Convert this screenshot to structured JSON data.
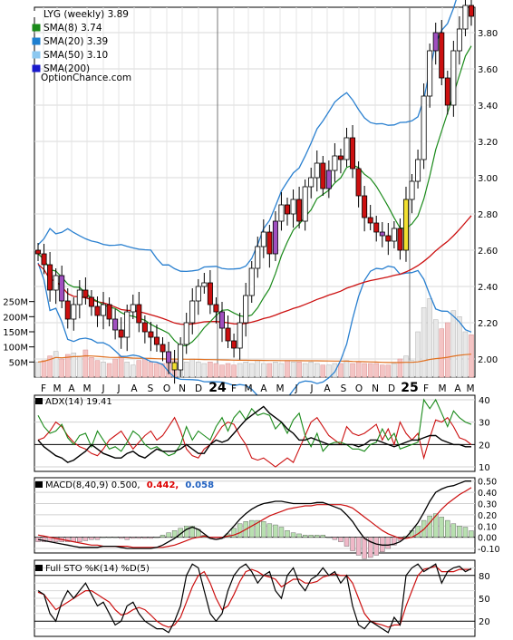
{
  "chart_data": {
    "type": "line",
    "title": "LYG (weekly) 3.89",
    "source": "OptionChance.com",
    "price_panel": {
      "legend": [
        {
          "label": "LYG (weekly) 3.89",
          "color": "#ffffff"
        },
        {
          "label": "SMA(8) 3.74",
          "color": "#1a8a1a"
        },
        {
          "label": "SMA(20) 3.39",
          "color": "#1e7fd0"
        },
        {
          "label": "SMA(50) 3.10",
          "color": "#8cc8f0"
        },
        {
          "label": "SMA(200)",
          "color": "#1a1acc"
        }
      ],
      "y_ticks": [
        "3.80",
        "3.60",
        "3.40",
        "3.20",
        "3.00",
        "2.80",
        "2.60",
        "2.40",
        "2.20",
        "2.00"
      ],
      "ylim": [
        1.9,
        3.94
      ],
      "close": [
        2.58,
        2.52,
        2.38,
        2.46,
        2.32,
        2.22,
        2.3,
        2.38,
        2.34,
        2.29,
        2.24,
        2.3,
        2.22,
        2.16,
        2.12,
        2.26,
        2.3,
        2.2,
        2.15,
        2.12,
        2.08,
        2.04,
        1.98,
        1.94,
        2.08,
        2.2,
        2.32,
        2.4,
        2.42,
        2.3,
        2.26,
        2.17,
        2.1,
        2.06,
        2.2,
        2.35,
        2.5,
        2.62,
        2.7,
        2.58,
        2.76,
        2.85,
        2.8,
        2.88,
        2.76,
        2.95,
        3.0,
        3.08,
        2.94,
        3.04,
        3.12,
        3.1,
        3.22,
        3.05,
        2.9,
        2.78,
        2.75,
        2.7,
        2.68,
        2.65,
        2.72,
        2.6,
        2.88,
        2.98,
        3.1,
        3.45,
        3.7,
        3.8,
        3.55,
        3.4,
        3.7,
        3.82,
        3.95,
        3.89
      ],
      "volume_ticks": [
        "250M",
        "200M",
        "150M",
        "100M",
        "50M"
      ],
      "volume_ylim": [
        0,
        270
      ],
      "volume": [
        50,
        55,
        70,
        85,
        60,
        75,
        80,
        70,
        90,
        65,
        55,
        50,
        45,
        60,
        70,
        50,
        40,
        55,
        60,
        50,
        45,
        45,
        50,
        55,
        55,
        50,
        60,
        50,
        45,
        50,
        45,
        40,
        45,
        40,
        45,
        50,
        45,
        55,
        45,
        45,
        50,
        45,
        55,
        50,
        50,
        45,
        50,
        45,
        40,
        40,
        45,
        45,
        55,
        45,
        50,
        45,
        45,
        45,
        40,
        40,
        45,
        60,
        70,
        55,
        150,
        230,
        260,
        190,
        160,
        180,
        220,
        200,
        150,
        140
      ]
    },
    "x_labels": [
      "F",
      "M",
      "A",
      "M",
      "J",
      "J",
      "A",
      "S",
      "O",
      "N",
      "D",
      "24",
      "F",
      "M",
      "A",
      "M",
      "J",
      "J",
      "A",
      "S",
      "O",
      "N",
      "D",
      "25",
      "F",
      "M",
      "A",
      "M"
    ],
    "adx_panel": {
      "title": "ADX(14) 19.41",
      "y_ticks": [
        "40",
        "30",
        "20",
        "10"
      ],
      "ylim": [
        8,
        42
      ],
      "adx": [
        22,
        19,
        17,
        15,
        14,
        12,
        13,
        15,
        17,
        20,
        18,
        16,
        15,
        14,
        14,
        16,
        17,
        15,
        14,
        16,
        18,
        17,
        17,
        17,
        18,
        20,
        18,
        16,
        16,
        20,
        22,
        21,
        22,
        25,
        28,
        31,
        33,
        35,
        37,
        34,
        32,
        30,
        27,
        25,
        22,
        22,
        23,
        22,
        21,
        20,
        20,
        20,
        20,
        20,
        19,
        20,
        22,
        22,
        21,
        20,
        19,
        20,
        21,
        22,
        22,
        23,
        24,
        24,
        22,
        21,
        20,
        20,
        19,
        19
      ],
      "plus_di": [
        33,
        28,
        25,
        26,
        29,
        23,
        20,
        24,
        25,
        19,
        26,
        22,
        18,
        19,
        17,
        21,
        26,
        24,
        20,
        18,
        19,
        17,
        15,
        16,
        20,
        28,
        22,
        26,
        24,
        22,
        28,
        32,
        26,
        32,
        35,
        31,
        36,
        33,
        34,
        33,
        27,
        30,
        25,
        31,
        34,
        24,
        19,
        25,
        17,
        20,
        21,
        21,
        20,
        18,
        18,
        17,
        20,
        21,
        27,
        22,
        25,
        18,
        19,
        20,
        21,
        40,
        36,
        40,
        34,
        28,
        35,
        32,
        30,
        29
      ],
      "minus_di": [
        22,
        23,
        26,
        30,
        28,
        24,
        21,
        19,
        18,
        16,
        15,
        18,
        22,
        24,
        26,
        22,
        18,
        21,
        24,
        26,
        22,
        24,
        28,
        32,
        26,
        18,
        15,
        14,
        18,
        20,
        24,
        28,
        30,
        29,
        24,
        20,
        14,
        13,
        14,
        12,
        10,
        12,
        14,
        12,
        18,
        24,
        30,
        32,
        28,
        24,
        22,
        20,
        28,
        25,
        24,
        25,
        27,
        29,
        22,
        27,
        20,
        30,
        25,
        22,
        25,
        14,
        23,
        31,
        30,
        32,
        28,
        23,
        22,
        20
      ]
    },
    "macd_panel": {
      "title": "MACD(8,40,9) 0.500, 0.442, 0.058",
      "macd_label": "MACD(8,40,9) 0.500,",
      "signal_label": "0.442,",
      "hist_label": "0.058",
      "y_ticks": [
        "0.50",
        "0.40",
        "0.30",
        "0.20",
        "0.10",
        "0.00",
        "-0.10"
      ],
      "ylim": [
        -0.14,
        0.53
      ],
      "macd": [
        -0.02,
        -0.03,
        -0.04,
        -0.05,
        -0.06,
        -0.07,
        -0.08,
        -0.09,
        -0.09,
        -0.09,
        -0.09,
        -0.08,
        -0.08,
        -0.08,
        -0.09,
        -0.1,
        -0.1,
        -0.1,
        -0.1,
        -0.1,
        -0.09,
        -0.07,
        -0.04,
        -0.01,
        0.03,
        0.07,
        0.09,
        0.07,
        0.03,
        -0.01,
        -0.02,
        -0.01,
        0.04,
        0.1,
        0.16,
        0.21,
        0.25,
        0.28,
        0.3,
        0.31,
        0.32,
        0.32,
        0.31,
        0.3,
        0.3,
        0.3,
        0.3,
        0.31,
        0.31,
        0.29,
        0.27,
        0.25,
        0.2,
        0.14,
        0.06,
        -0.01,
        -0.04,
        -0.06,
        -0.07,
        -0.07,
        -0.06,
        -0.04,
        0.0,
        0.06,
        0.13,
        0.22,
        0.32,
        0.4,
        0.43,
        0.45,
        0.46,
        0.48,
        0.5,
        0.5
      ],
      "signal": [
        0.02,
        0.01,
        0.0,
        -0.01,
        -0.02,
        -0.03,
        -0.04,
        -0.05,
        -0.06,
        -0.07,
        -0.07,
        -0.08,
        -0.08,
        -0.08,
        -0.08,
        -0.08,
        -0.09,
        -0.09,
        -0.09,
        -0.09,
        -0.09,
        -0.09,
        -0.08,
        -0.07,
        -0.05,
        -0.03,
        -0.01,
        0.0,
        0.01,
        0.0,
        0.0,
        0.0,
        0.01,
        0.02,
        0.04,
        0.07,
        0.1,
        0.13,
        0.16,
        0.19,
        0.21,
        0.23,
        0.25,
        0.26,
        0.27,
        0.28,
        0.28,
        0.29,
        0.29,
        0.29,
        0.29,
        0.29,
        0.28,
        0.26,
        0.22,
        0.18,
        0.14,
        0.1,
        0.06,
        0.03,
        0.01,
        -0.01,
        -0.01,
        0.0,
        0.03,
        0.07,
        0.13,
        0.19,
        0.25,
        0.3,
        0.34,
        0.38,
        0.41,
        0.442
      ],
      "hist": [
        -0.04,
        -0.04,
        -0.04,
        -0.04,
        -0.04,
        -0.04,
        -0.04,
        -0.04,
        -0.03,
        -0.02,
        -0.02,
        0.0,
        0.0,
        0.0,
        -0.01,
        -0.02,
        -0.01,
        -0.01,
        -0.01,
        -0.01,
        0.0,
        0.02,
        0.04,
        0.06,
        0.08,
        0.1,
        0.1,
        0.07,
        0.02,
        -0.01,
        -0.02,
        -0.01,
        0.03,
        0.08,
        0.12,
        0.14,
        0.15,
        0.15,
        0.14,
        0.12,
        0.11,
        0.09,
        0.06,
        0.04,
        0.03,
        0.02,
        0.02,
        0.02,
        0.02,
        0.0,
        -0.02,
        -0.04,
        -0.08,
        -0.12,
        -0.16,
        -0.19,
        -0.18,
        -0.16,
        -0.13,
        -0.1,
        -0.07,
        -0.03,
        0.01,
        0.06,
        0.1,
        0.15,
        0.19,
        0.21,
        0.18,
        0.15,
        0.12,
        0.1,
        0.09,
        0.058
      ]
    },
    "sto_panel": {
      "title": "Full STO %K(14) %D(5)",
      "y_ticks": [
        "80",
        "50",
        "20"
      ],
      "ylim": [
        0,
        100
      ],
      "k": [
        60,
        55,
        30,
        20,
        45,
        60,
        50,
        60,
        70,
        55,
        40,
        45,
        30,
        15,
        20,
        40,
        45,
        30,
        20,
        15,
        10,
        10,
        5,
        20,
        40,
        80,
        95,
        90,
        60,
        30,
        20,
        30,
        60,
        80,
        90,
        95,
        85,
        70,
        80,
        85,
        60,
        50,
        80,
        90,
        70,
        60,
        75,
        80,
        90,
        80,
        85,
        70,
        80,
        40,
        15,
        10,
        20,
        15,
        10,
        5,
        25,
        15,
        80,
        90,
        95,
        85,
        90,
        95,
        70,
        85,
        90,
        92,
        85,
        89
      ],
      "d": [
        58,
        55,
        45,
        35,
        40,
        45,
        50,
        55,
        60,
        60,
        55,
        50,
        45,
        35,
        28,
        30,
        35,
        38,
        35,
        28,
        20,
        15,
        12,
        15,
        25,
        45,
        65,
        80,
        85,
        70,
        50,
        35,
        40,
        55,
        72,
        85,
        88,
        85,
        80,
        78,
        75,
        65,
        70,
        75,
        75,
        70,
        70,
        72,
        78,
        80,
        82,
        80,
        80,
        70,
        50,
        30,
        20,
        17,
        15,
        12,
        15,
        15,
        40,
        60,
        80,
        88,
        90,
        92,
        85,
        85,
        85,
        88,
        88,
        88
      ]
    }
  }
}
